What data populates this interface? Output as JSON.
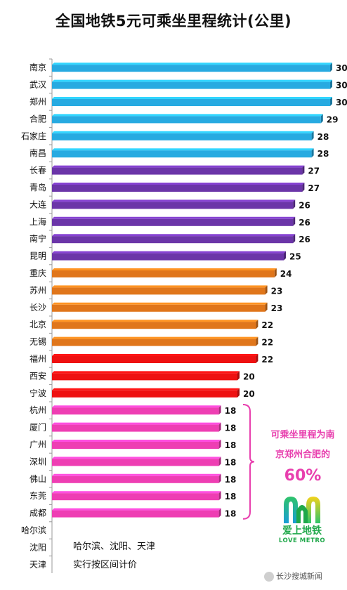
{
  "chart_data": {
    "type": "bar",
    "orientation": "horizontal",
    "title": "全国地铁5元可乘坐里程统计(公里)",
    "categories": [
      "南京",
      "武汉",
      "郑州",
      "合肥",
      "石家庄",
      "南昌",
      "长春",
      "青岛",
      "大连",
      "上海",
      "南宁",
      "昆明",
      "重庆",
      "苏州",
      "长沙",
      "北京",
      "无锡",
      "福州",
      "西安",
      "宁波",
      "杭州",
      "厦门",
      "广州",
      "深圳",
      "佛山",
      "东莞",
      "成都",
      "哈尔滨",
      "沈阳",
      "天津"
    ],
    "values": [
      30,
      30,
      30,
      29,
      28,
      28,
      27,
      27,
      26,
      26,
      26,
      25,
      24,
      23,
      23,
      22,
      22,
      22,
      20,
      20,
      18,
      18,
      18,
      18,
      18,
      18,
      18,
      null,
      null,
      null
    ],
    "bar_colors": [
      "#27aae1",
      "#27aae1",
      "#27aae1",
      "#27aae1",
      "#27aae1",
      "#27aae1",
      "#6b35a8",
      "#6b35a8",
      "#6b35a8",
      "#6b35a8",
      "#6b35a8",
      "#6b35a8",
      "#e0761b",
      "#e0761b",
      "#e0761b",
      "#e0761b",
      "#e0761b",
      "#ee1111",
      "#ee1111",
      "#ee1111",
      "#ee3eb3",
      "#ee3eb3",
      "#ee3eb3",
      "#ee3eb3",
      "#ee3eb3",
      "#ee3eb3",
      "#ee3eb3",
      null,
      null,
      null
    ],
    "xlim": [
      0,
      30
    ],
    "grid": false,
    "legend": "none",
    "annotation": {
      "lines": [
        "可乘坐里程为南",
        "京郑州合肥的"
      ],
      "highlight": "60%",
      "color": "#e83fae"
    },
    "note_lines": [
      "哈尔滨、沈阳、天津",
      "实行按区间计价"
    ]
  },
  "logo": {
    "text_cn": "爱上地铁",
    "text_en": "LOVE METRO",
    "color": "#1fa84a"
  },
  "watermark": "长沙搜城新闻"
}
